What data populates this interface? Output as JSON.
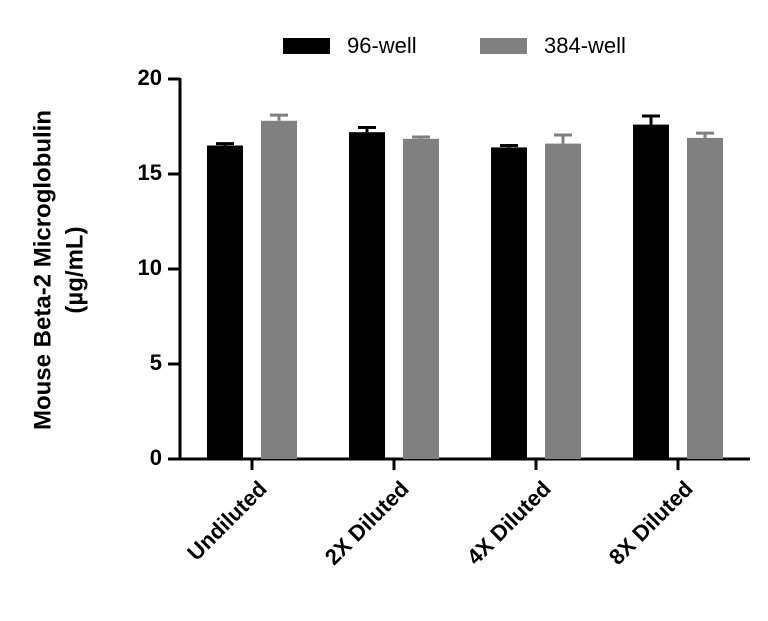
{
  "chart_data": {
    "type": "bar",
    "y_label": [
      "Mouse Beta-2 Microglobulin",
      "(µg/mL)"
    ],
    "categories": [
      "Undiluted",
      "2X Diluted",
      "4X Diluted",
      "8X Diluted"
    ],
    "series": [
      {
        "name": "96-well",
        "color": "#000000",
        "values": [
          16.5,
          17.2,
          16.4,
          17.6
        ],
        "errors": [
          0.1,
          0.25,
          0.1,
          0.45
        ]
      },
      {
        "name": "384-well",
        "color": "#808080",
        "values": [
          17.8,
          16.85,
          16.6,
          16.9
        ],
        "errors": [
          0.3,
          0.1,
          0.45,
          0.25
        ]
      }
    ],
    "ylim": [
      0,
      20
    ],
    "yticks": [
      0,
      5,
      10,
      15,
      20
    ],
    "legend": "top"
  }
}
